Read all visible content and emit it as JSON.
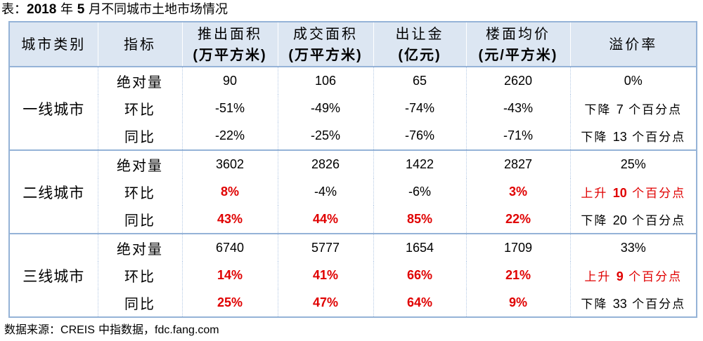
{
  "colors": {
    "header_bg": "#dce6f2",
    "border": "#95b3d7",
    "emphasis": "#e00000"
  },
  "chart_data": {
    "type": "table",
    "title": "表：2018 年 5 月不同城市土地市场情况",
    "columns": [
      {
        "name": "城市类别"
      },
      {
        "name": "指标"
      },
      {
        "name": "推出面积",
        "unit": "(万平方米)"
      },
      {
        "name": "成交面积",
        "unit": "(万平方米)"
      },
      {
        "name": "出让金",
        "unit": "(亿元)"
      },
      {
        "name": "楼面均价",
        "unit": "(元/平方米)"
      },
      {
        "name": "溢价率"
      }
    ],
    "groups": [
      {
        "name": "一线城市",
        "rows": [
          {
            "metric": "绝对量",
            "values": [
              "90",
              "106",
              "65",
              "2620",
              "0%"
            ],
            "emphasis": [
              false,
              false,
              false,
              false,
              false
            ]
          },
          {
            "metric": "环比",
            "values": [
              "-51%",
              "-49%",
              "-74%",
              "-43%",
              "下降 7 个百分点"
            ],
            "emphasis": [
              false,
              false,
              false,
              false,
              false
            ]
          },
          {
            "metric": "同比",
            "values": [
              "-22%",
              "-25%",
              "-76%",
              "-71%",
              "下降 13 个百分点"
            ],
            "emphasis": [
              false,
              false,
              false,
              false,
              false
            ]
          }
        ]
      },
      {
        "name": "二线城市",
        "rows": [
          {
            "metric": "绝对量",
            "values": [
              "3602",
              "2826",
              "1422",
              "2827",
              "25%"
            ],
            "emphasis": [
              false,
              false,
              false,
              false,
              false
            ]
          },
          {
            "metric": "环比",
            "values": [
              "8%",
              "-4%",
              "-6%",
              "3%",
              "上升 10 个百分点"
            ],
            "emphasis": [
              true,
              false,
              false,
              true,
              true
            ]
          },
          {
            "metric": "同比",
            "values": [
              "43%",
              "44%",
              "85%",
              "22%",
              "下降 20 个百分点"
            ],
            "emphasis": [
              true,
              true,
              true,
              true,
              false
            ]
          }
        ]
      },
      {
        "name": "三线城市",
        "rows": [
          {
            "metric": "绝对量",
            "values": [
              "6740",
              "5777",
              "1654",
              "1709",
              "33%"
            ],
            "emphasis": [
              false,
              false,
              false,
              false,
              false
            ]
          },
          {
            "metric": "环比",
            "values": [
              "14%",
              "41%",
              "66%",
              "21%",
              "上升 9 个百分点"
            ],
            "emphasis": [
              true,
              true,
              true,
              true,
              true
            ]
          },
          {
            "metric": "同比",
            "values": [
              "25%",
              "47%",
              "64%",
              "9%",
              "下降 33 个百分点"
            ],
            "emphasis": [
              true,
              true,
              true,
              true,
              false
            ]
          }
        ]
      }
    ],
    "source": "数据来源：CREIS 中指数据，fdc.fang.com"
  }
}
